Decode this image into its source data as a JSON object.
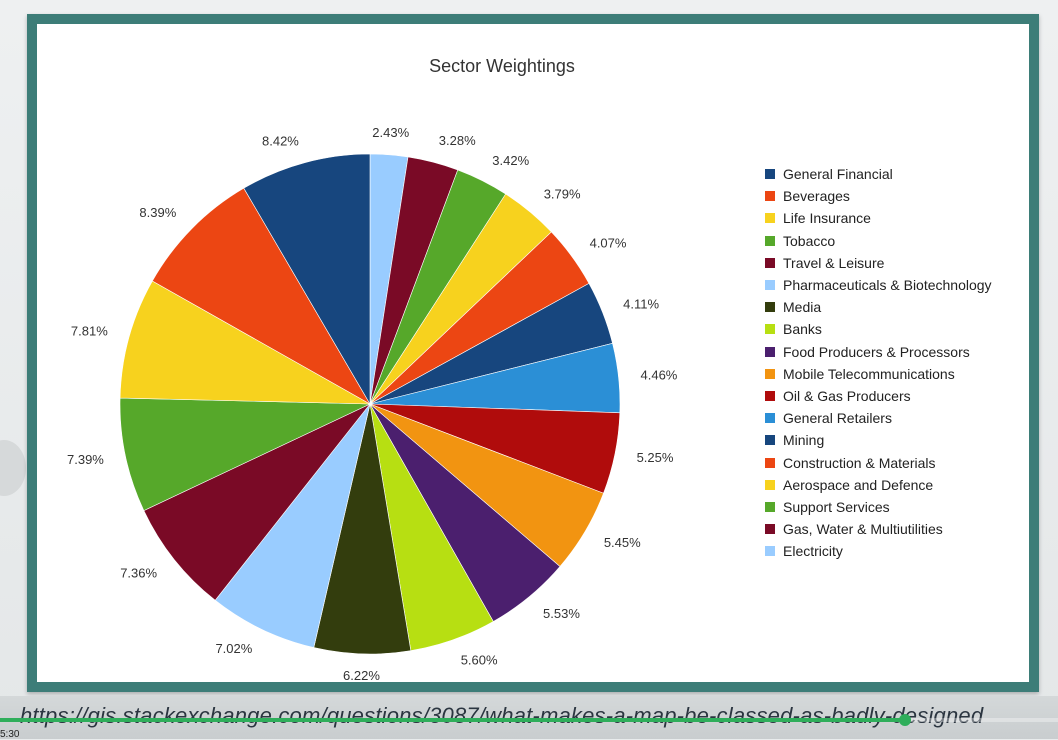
{
  "chart_data": {
    "type": "pie",
    "title": "Sector Weightings",
    "legend_position": "right",
    "slices": [
      {
        "label": "Electricity",
        "value": 2.43,
        "value_label": "2.43%",
        "color": "#99ccff"
      },
      {
        "label": "Gas, Water & Multiutilities",
        "value": 3.28,
        "value_label": "3.28%",
        "color": "#7a0a26"
      },
      {
        "label": "Support Services",
        "value": 3.42,
        "value_label": "3.42%",
        "color": "#56a82a"
      },
      {
        "label": "Aerospace and Defence",
        "value": 3.79,
        "value_label": "3.79%",
        "color": "#f7d21e"
      },
      {
        "label": "Construction & Materials",
        "value": 4.07,
        "value_label": "4.07%",
        "color": "#ec4613"
      },
      {
        "label": "Mining",
        "value": 4.11,
        "value_label": "4.11%",
        "color": "#17467e"
      },
      {
        "label": "General Retailers",
        "value": 4.46,
        "value_label": "4.46%",
        "color": "#2b8fd6"
      },
      {
        "label": "Oil & Gas Producers",
        "value": 5.25,
        "value_label": "5.25%",
        "color": "#b00c0c"
      },
      {
        "label": "Mobile Telecommunications",
        "value": 5.45,
        "value_label": "5.45%",
        "color": "#f29411"
      },
      {
        "label": "Food Producers & Processors",
        "value": 5.53,
        "value_label": "5.53%",
        "color": "#4b1f6e"
      },
      {
        "label": "Banks",
        "value": 5.6,
        "value_label": "5.60%",
        "color": "#b7df12"
      },
      {
        "label": "Media",
        "value": 6.22,
        "value_label": "6.22%",
        "color": "#333d0d"
      },
      {
        "label": "Pharmaceuticals & Biotechnology",
        "value": 7.02,
        "value_label": "7.02%",
        "color": "#99ccff"
      },
      {
        "label": "Travel & Leisure",
        "value": 7.36,
        "value_label": "7.36%",
        "color": "#7a0a26"
      },
      {
        "label": "Tobacco",
        "value": 7.39,
        "value_label": "7.39%",
        "color": "#56a82a"
      },
      {
        "label": "Life Insurance",
        "value": 7.81,
        "value_label": "7.81%",
        "color": "#f7d21e"
      },
      {
        "label": "Beverages",
        "value": 8.39,
        "value_label": "8.39%",
        "color": "#ec4613"
      },
      {
        "label": "General Financial",
        "value": 8.42,
        "value_label": "8.42%",
        "color": "#17467e"
      }
    ],
    "legend": [
      {
        "label": "General Financial",
        "color": "#17467e"
      },
      {
        "label": "Beverages",
        "color": "#ec4613"
      },
      {
        "label": "Life Insurance",
        "color": "#f7d21e"
      },
      {
        "label": "Tobacco",
        "color": "#56a82a"
      },
      {
        "label": "Travel & Leisure",
        "color": "#7a0a26"
      },
      {
        "label": "Pharmaceuticals & Biotechnology",
        "color": "#99ccff"
      },
      {
        "label": "Media",
        "color": "#333d0d"
      },
      {
        "label": "Banks",
        "color": "#b7df12"
      },
      {
        "label": "Food Producers & Processors",
        "color": "#4b1f6e"
      },
      {
        "label": "Mobile Telecommunications",
        "color": "#f29411"
      },
      {
        "label": "Oil & Gas Producers",
        "color": "#b00c0c"
      },
      {
        "label": "General Retailers",
        "color": "#2b8fd6"
      },
      {
        "label": "Mining",
        "color": "#17467e"
      },
      {
        "label": "Construction & Materials",
        "color": "#ec4613"
      },
      {
        "label": "Aerospace and Defence",
        "color": "#f7d21e"
      },
      {
        "label": "Support Services",
        "color": "#56a82a"
      },
      {
        "label": "Gas, Water & Multiutilities",
        "color": "#7a0a26"
      },
      {
        "label": "Electricity",
        "color": "#99ccff"
      }
    ]
  },
  "caption": {
    "url": "https://gis.stackexchange.com/questions/3087/what-makes-a-map-be-classed-as-badly-designed"
  },
  "player": {
    "progress": 0.855,
    "time": "5:30",
    "progress_color": "#2fae5b"
  }
}
